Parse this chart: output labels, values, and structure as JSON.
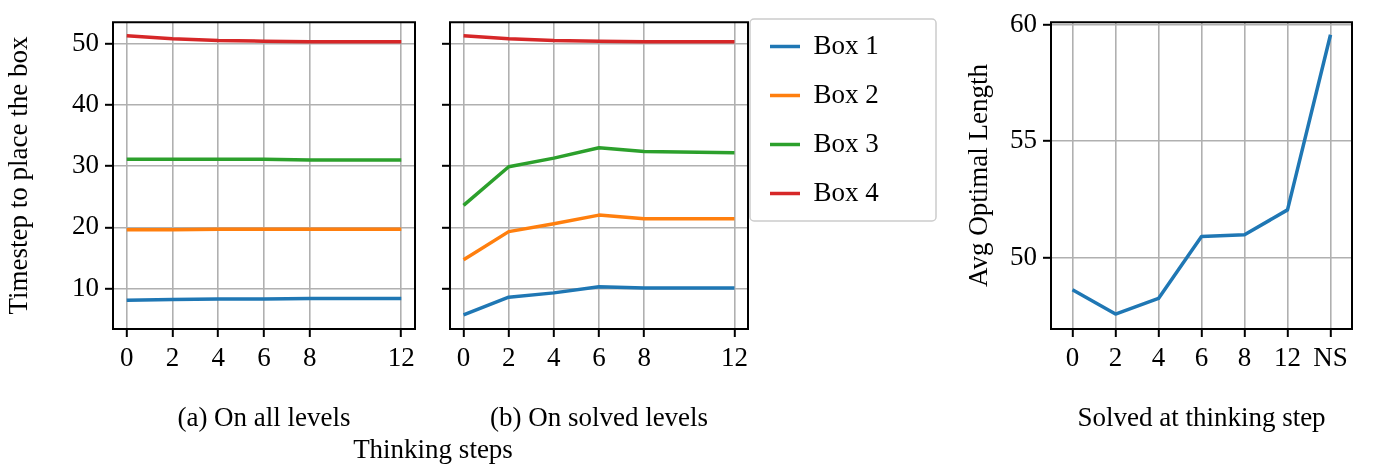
{
  "chart_data": [
    {
      "type": "line",
      "xlabel": "(a) On all levels",
      "ylabel": "Timestep to place the box",
      "x": [
        0,
        2,
        4,
        6,
        8,
        12
      ],
      "xlim": [
        -0.6,
        12.6
      ],
      "xticks": [
        0,
        2,
        4,
        6,
        8,
        12
      ],
      "ylim": [
        3.4,
        53.5
      ],
      "yticks": [
        10,
        20,
        30,
        40,
        50
      ],
      "grid": true,
      "series": [
        {
          "color": "#1f77b4",
          "values": [
            8.1,
            8.2,
            8.3,
            8.3,
            8.4,
            8.4
          ]
        },
        {
          "color": "#ff7f0e",
          "values": [
            19.6,
            19.6,
            19.7,
            19.7,
            19.7,
            19.7
          ]
        },
        {
          "color": "#2ca02c",
          "values": [
            31.1,
            31.1,
            31.1,
            31.1,
            31.0,
            31.0
          ]
        },
        {
          "color": "#d62728",
          "values": [
            51.3,
            50.8,
            50.5,
            50.4,
            50.3,
            50.3
          ]
        }
      ]
    },
    {
      "type": "line",
      "xlabel": "(b) On solved levels",
      "annotations": [
        "Thinking steps"
      ],
      "x": [
        0,
        2,
        4,
        6,
        8,
        12
      ],
      "xlim": [
        -0.6,
        12.6
      ],
      "xticks": [
        0,
        2,
        4,
        6,
        8,
        12
      ],
      "ylim": [
        3.4,
        53.5
      ],
      "yticks": [
        10,
        20,
        30,
        40,
        50
      ],
      "grid": true,
      "tick_labels": "x",
      "legend": "right",
      "series": [
        {
          "name": "Box 1",
          "color": "#1f77b4",
          "values": [
            5.7,
            8.6,
            9.3,
            10.3,
            10.1,
            10.1
          ]
        },
        {
          "name": "Box 2",
          "color": "#ff7f0e",
          "values": [
            14.7,
            19.3,
            20.6,
            22.0,
            21.4,
            21.4
          ]
        },
        {
          "name": "Box 3",
          "color": "#2ca02c",
          "values": [
            23.6,
            29.9,
            31.3,
            33.0,
            32.4,
            32.2
          ]
        },
        {
          "name": "Box 4",
          "color": "#d62728",
          "values": [
            51.3,
            50.8,
            50.5,
            50.4,
            50.3,
            50.3
          ]
        }
      ]
    },
    {
      "type": "line",
      "xlabel": "Solved at thinking step",
      "ylabel": "Avg Optimal Length",
      "categories": [
        "0",
        "2",
        "4",
        "6",
        "8",
        "12",
        "NS"
      ],
      "ylim": [
        46.94,
        60.1
      ],
      "yticks": [
        50,
        55,
        60
      ],
      "grid": true,
      "series": [
        {
          "color": "#1f77b4",
          "values": [
            48.62,
            47.58,
            48.25,
            50.91,
            50.98,
            52.05,
            59.56
          ]
        }
      ]
    }
  ]
}
